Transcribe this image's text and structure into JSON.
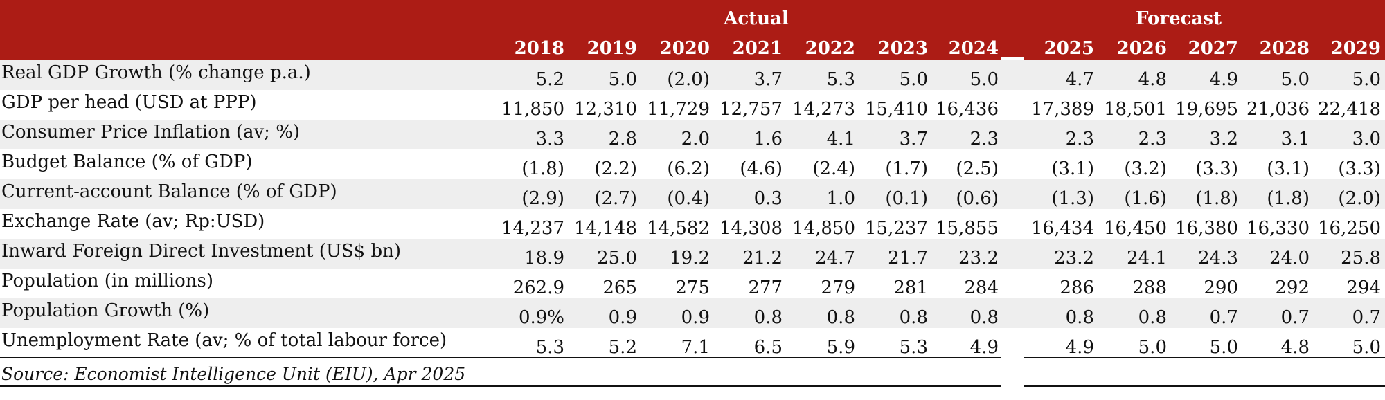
{
  "header": {
    "groups": {
      "actual": "Actual",
      "forecast": "Forecast"
    },
    "years": [
      "2018",
      "2019",
      "2020",
      "2021",
      "2022",
      "2023",
      "2024",
      "2025",
      "2026",
      "2027",
      "2028",
      "2029"
    ]
  },
  "rows": [
    {
      "label": "Real GDP Growth (% change p.a.)",
      "values": [
        "5.2",
        "5.0",
        "(2.0)",
        "3.7",
        "5.3",
        "5.0",
        "5.0",
        "4.7",
        "4.8",
        "4.9",
        "5.0",
        "5.0"
      ]
    },
    {
      "label": "GDP per head (USD at PPP)",
      "values": [
        "11,850",
        "12,310",
        "11,729",
        "12,757",
        "14,273",
        "15,410",
        "16,436",
        "17,389",
        "18,501",
        "19,695",
        "21,036",
        "22,418"
      ]
    },
    {
      "label": "Consumer Price Inflation (av; %)",
      "values": [
        "3.3",
        "2.8",
        "2.0",
        "1.6",
        "4.1",
        "3.7",
        "2.3",
        "2.3",
        "2.3",
        "3.2",
        "3.1",
        "3.0"
      ]
    },
    {
      "label": "Budget Balance (% of GDP)",
      "values": [
        "(1.8)",
        "(2.2)",
        "(6.2)",
        "(4.6)",
        "(2.4)",
        "(1.7)",
        "(2.5)",
        "(3.1)",
        "(3.2)",
        "(3.3)",
        "(3.1)",
        "(3.3)"
      ]
    },
    {
      "label": "Current-account Balance (% of GDP)",
      "values": [
        "(2.9)",
        "(2.7)",
        "(0.4)",
        "0.3",
        "1.0",
        "(0.1)",
        "(0.6)",
        "(1.3)",
        "(1.6)",
        "(1.8)",
        "(1.8)",
        "(2.0)"
      ]
    },
    {
      "label": "Exchange Rate (av; Rp:USD)",
      "values": [
        "14,237",
        "14,148",
        "14,582",
        "14,308",
        "14,850",
        "15,237",
        "15,855",
        "16,434",
        "16,450",
        "16,380",
        "16,330",
        "16,250"
      ]
    },
    {
      "label": "Inward Foreign Direct Investment (US$ bn)",
      "values": [
        "18.9",
        "25.0",
        "19.2",
        "21.2",
        "24.7",
        "21.7",
        "23.2",
        "23.2",
        "24.1",
        "24.3",
        "24.0",
        "25.8"
      ]
    },
    {
      "label": "Population (in millions)",
      "values": [
        "262.9",
        "265",
        "275",
        "277",
        "279",
        "281",
        "284",
        "286",
        "288",
        "290",
        "292",
        "294"
      ]
    },
    {
      "label": "Population Growth (%)",
      "values": [
        "0.9%",
        "0.9",
        "0.9",
        "0.8",
        "0.8",
        "0.8",
        "0.8",
        "0.8",
        "0.8",
        "0.7",
        "0.7",
        "0.7"
      ]
    },
    {
      "label": "Unemployment Rate (av; % of total labour force)",
      "values": [
        "5.3",
        "5.2",
        "7.1",
        "6.5",
        "5.9",
        "5.3",
        "4.9",
        "4.9",
        "5.0",
        "5.0",
        "4.8",
        "5.0"
      ]
    }
  ],
  "source": "Source: Economist Intelligence Unit (EIU), Apr 2025",
  "colors": {
    "header_bg": "#ac1c15",
    "header_text": "#ffffff",
    "row_shade": "#eeeeee"
  }
}
